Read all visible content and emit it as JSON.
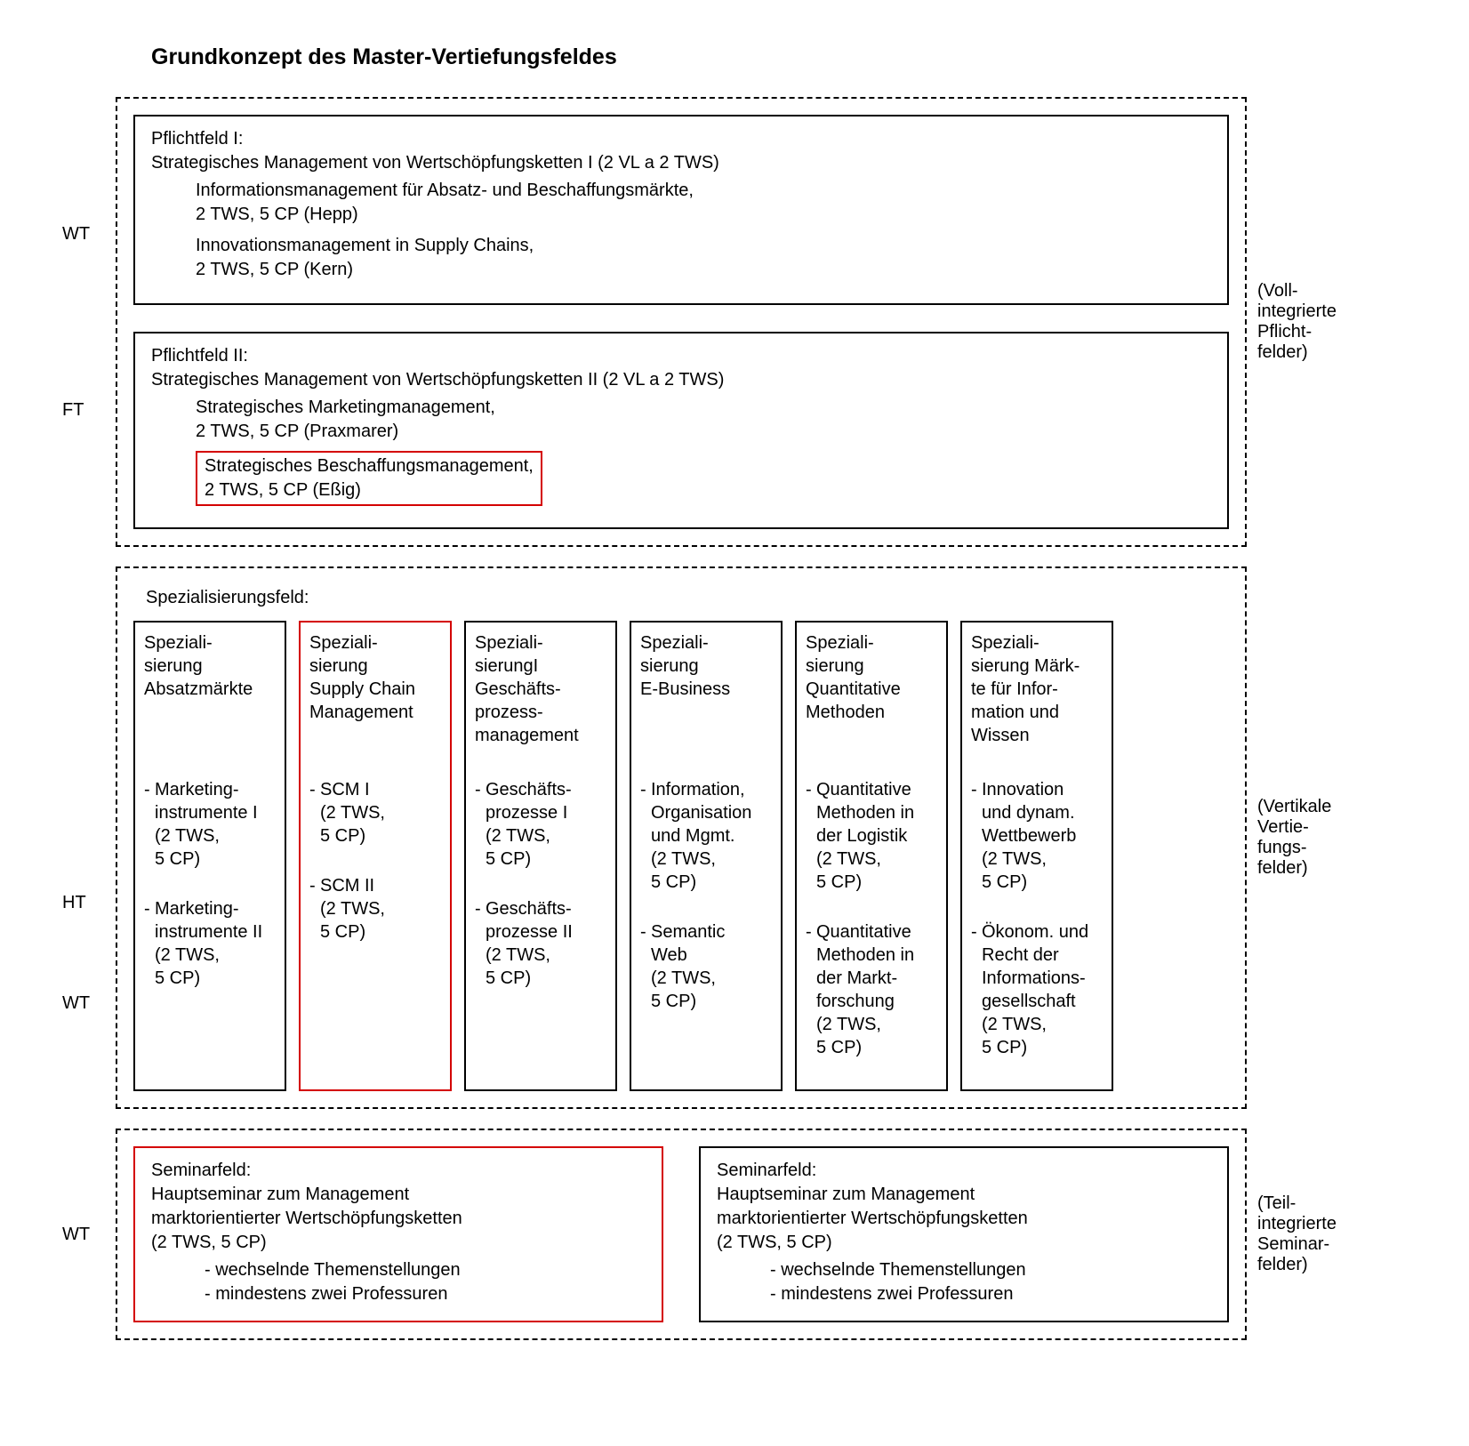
{
  "title": "Grundkonzept des Master-Vertiefungsfeldes",
  "colors": {
    "highlight": "#d40000",
    "border": "#000000",
    "background": "#ffffff",
    "text": "#000000"
  },
  "terms": {
    "WT": "WT",
    "FT": "FT",
    "HT": "HT"
  },
  "section1": {
    "rightLabel": "(Voll-\nintegrierte\nPflicht-\nfelder)",
    "pflichtfeld1": {
      "title": "Pflichtfeld I:",
      "subtitle": "Strategisches Management von Wertschöpfungsketten I (2 VL a 2 TWS)",
      "modules": [
        {
          "name": "Informationsmanagement für Absatz- und Beschaffungsmärkte,",
          "details": "2 TWS, 5 CP (Hepp)",
          "highlight": false
        },
        {
          "name": "Innovationsmanagement in Supply Chains,",
          "details": "2 TWS, 5 CP (Kern)",
          "highlight": false
        }
      ]
    },
    "pflichtfeld2": {
      "title": "Pflichtfeld II:",
      "subtitle": "Strategisches Management von Wertschöpfungsketten II (2 VL a 2 TWS)",
      "modules": [
        {
          "name": "Strategisches Marketingmanagement,",
          "details": "2 TWS, 5 CP (Praxmarer)",
          "highlight": false
        },
        {
          "name": "Strategisches Beschaffungsmanagement,",
          "details": "2 TWS, 5 CP (Eßig)",
          "highlight": true
        }
      ]
    }
  },
  "section2": {
    "label": "Spezialisierungsfeld:",
    "rightLabel": "(Vertikale\nVertie-\nfungs-\nfelder)",
    "columns": [
      {
        "title": "Speziali-\nsierung\nAbsatzmärkte",
        "highlight": false,
        "items": [
          {
            "text": "Marketing-\ninstrumente I\n(2 TWS,\n5 CP)"
          },
          {
            "text": "Marketing-\ninstrumente II\n(2 TWS,\n5 CP)"
          }
        ]
      },
      {
        "title": "Speziali-\nsierung\nSupply Chain\nManagement",
        "highlight": true,
        "items": [
          {
            "text": "SCM I\n(2 TWS,\n5 CP)"
          },
          {
            "text": "SCM II\n(2 TWS,\n5 CP)"
          }
        ]
      },
      {
        "title": "Speziali-\nsierungI\nGeschäfts-\nprozess-\nmanagement",
        "highlight": false,
        "items": [
          {
            "text": "Geschäfts-\nprozesse I\n(2 TWS,\n5 CP)"
          },
          {
            "text": "Geschäfts-\nprozesse II\n(2 TWS,\n5 CP)"
          }
        ]
      },
      {
        "title": "Speziali-\nsierung\nE-Business",
        "highlight": false,
        "items": [
          {
            "text": "Information,\nOrganisation\nund Mgmt.\n(2 TWS,\n5 CP)"
          },
          {
            "text": "Semantic\nWeb\n(2 TWS,\n5 CP)"
          }
        ]
      },
      {
        "title": "Speziali-\nsierung\nQuantitative\nMethoden",
        "highlight": false,
        "items": [
          {
            "text": "Quantitative\nMethoden in\nder Logistik\n(2 TWS,\n5 CP)"
          },
          {
            "text": "Quantitative\nMethoden in\nder Markt-\nforschung\n(2 TWS,\n5 CP)"
          }
        ]
      },
      {
        "title": "Speziali-\nsierung Märk-\nte für Infor-\nmation und\nWissen",
        "highlight": false,
        "items": [
          {
            "text": "Innovation\nund dynam.\nWettbewerb\n(2 TWS,\n5 CP)"
          },
          {
            "text": "Ökonom. und\nRecht der\nInformations-\ngesellschaft\n(2 TWS,\n5 CP)"
          }
        ]
      }
    ]
  },
  "section3": {
    "rightLabel": "(Teil-\nintegrierte\nSeminar-\nfelder)",
    "seminars": [
      {
        "title": "Seminarfeld:",
        "text": "Hauptseminar zum Management\nmarktorientierter Wertschöpfungsketten\n(2 TWS, 5 CP)",
        "bullets": [
          "- wechselnde Themenstellungen",
          "- mindestens zwei Professuren"
        ],
        "highlight": true
      },
      {
        "title": "Seminarfeld:",
        "text": "Hauptseminar zum Management\nmarktorientierter Wertschöpfungsketten\n(2 TWS, 5 CP)",
        "bullets": [
          "- wechselnde Themenstellungen",
          "- mindestens zwei Professuren"
        ],
        "highlight": false
      }
    ]
  }
}
